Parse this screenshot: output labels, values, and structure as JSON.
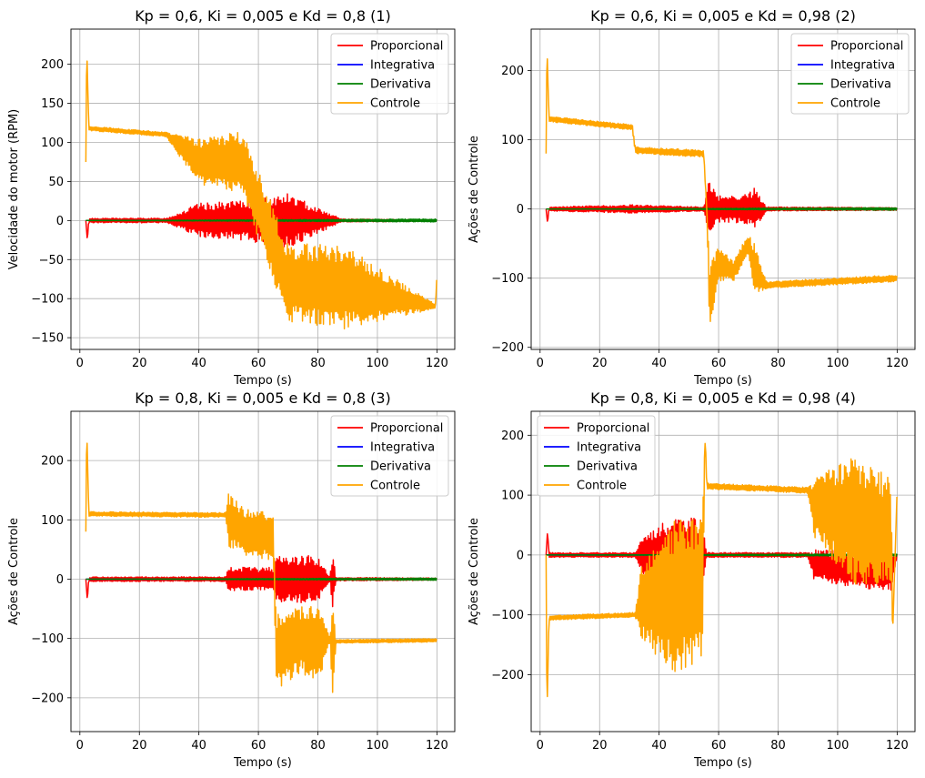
{
  "chart_data": [
    {
      "type": "line",
      "title": "Kp = 0,6, Ki = 0,005 e Kd = 0,8 (1)",
      "xlabel": "Tempo (s)",
      "ylabel": "Velocidade do motor (RPM)",
      "xlim": [
        -3,
        126
      ],
      "ylim": [
        -165,
        245
      ],
      "xticks": [
        "0",
        "20",
        "40",
        "60",
        "80",
        "100",
        "120"
      ],
      "yticks": [
        "−150",
        "−100",
        "−50",
        "0",
        "50",
        "100",
        "150",
        "200"
      ],
      "xtick_values": [
        0,
        20,
        40,
        60,
        80,
        100,
        120
      ],
      "ytick_values": [
        -150,
        -100,
        -50,
        0,
        50,
        100,
        150,
        200
      ],
      "grid": true,
      "legend": "top-right",
      "series": [
        {
          "name": "Proporcional",
          "color": "#ff0000",
          "x": [
            2,
            2.5,
            3,
            29,
            40,
            54.5,
            70,
            88,
            120
          ],
          "values": [
            0,
            -25,
            0,
            0,
            0,
            0,
            0,
            0,
            0
          ],
          "amplitude": [
            0,
            0,
            3,
            3,
            22,
            25,
            35,
            2,
            1
          ]
        },
        {
          "name": "Integrativa",
          "color": "#0000ff",
          "x": [
            2,
            120
          ],
          "values": [
            0,
            0
          ],
          "amplitude": [
            0,
            0
          ]
        },
        {
          "name": "Derivativa",
          "color": "#008000",
          "x": [
            2,
            120
          ],
          "values": [
            0,
            0
          ],
          "amplitude": [
            0,
            2
          ]
        },
        {
          "name": "Controle",
          "color": "#ffa500",
          "x": [
            2,
            2.3,
            3,
            29,
            40,
            54.5,
            70,
            88,
            119.5,
            120
          ],
          "values": [
            75,
            225,
            118,
            110,
            75,
            75,
            -80,
            -85,
            -110,
            -70
          ],
          "amplitude": [
            0,
            0,
            3,
            3,
            30,
            40,
            50,
            55,
            3,
            0
          ]
        }
      ]
    },
    {
      "type": "line",
      "title": "Kp = 0,6, Ki = 0,005 e Kd = 0,98 (2)",
      "xlabel": "Tempo (s)",
      "ylabel": "Ações de Controle",
      "xlim": [
        -3,
        126
      ],
      "ylim": [
        -203,
        260
      ],
      "xticks": [
        "0",
        "20",
        "40",
        "60",
        "80",
        "100",
        "120"
      ],
      "yticks": [
        "−200",
        "−100",
        "0",
        "100",
        "200"
      ],
      "xtick_values": [
        0,
        20,
        40,
        60,
        80,
        100,
        120
      ],
      "ytick_values": [
        -200,
        -100,
        0,
        100,
        200
      ],
      "grid": true,
      "legend": "top-right",
      "series": [
        {
          "name": "Proporcional",
          "color": "#ff0000",
          "x": [
            2,
            2.5,
            3,
            31,
            55,
            56.5,
            60,
            68,
            72,
            76,
            120
          ],
          "values": [
            0,
            -20,
            0,
            0,
            0,
            0,
            0,
            0,
            0,
            0,
            0
          ],
          "amplitude": [
            0,
            0,
            3,
            6,
            3,
            40,
            20,
            20,
            30,
            3,
            2
          ]
        },
        {
          "name": "Integrativa",
          "color": "#0000ff",
          "x": [
            2,
            120
          ],
          "values": [
            0,
            0
          ],
          "amplitude": [
            0,
            0
          ]
        },
        {
          "name": "Derivativa",
          "color": "#008000",
          "x": [
            2,
            120
          ],
          "values": [
            0,
            0
          ],
          "amplitude": [
            0,
            2
          ]
        },
        {
          "name": "Controle",
          "color": "#ffa500",
          "x": [
            2,
            2.3,
            3,
            31,
            32,
            55,
            56,
            57,
            60,
            65,
            70,
            72,
            76,
            120
          ],
          "values": [
            80,
            238,
            130,
            118,
            85,
            80,
            0,
            -130,
            -80,
            -90,
            -50,
            -90,
            -110,
            -100
          ],
          "amplitude": [
            0,
            0,
            4,
            4,
            5,
            5,
            0,
            50,
            25,
            15,
            15,
            40,
            5,
            5
          ]
        }
      ]
    },
    {
      "type": "line",
      "title": "Kp = 0,8, Ki = 0,005 e Kd = 0,8 (3)",
      "xlabel": "Tempo (s)",
      "ylabel": "Ações de Controle",
      "xlim": [
        -3,
        126
      ],
      "ylim": [
        -257,
        283
      ],
      "xticks": [
        "0",
        "20",
        "40",
        "60",
        "80",
        "100",
        "120"
      ],
      "yticks": [
        "−200",
        "−100",
        "0",
        "100",
        "200"
      ],
      "xtick_values": [
        0,
        20,
        40,
        60,
        80,
        100,
        120
      ],
      "ytick_values": [
        -200,
        -100,
        0,
        100,
        200
      ],
      "grid": true,
      "legend": "top-right",
      "series": [
        {
          "name": "Proporcional",
          "color": "#ff0000",
          "x": [
            2,
            2.5,
            3,
            49,
            50,
            65,
            66,
            80,
            84,
            85,
            86,
            120
          ],
          "values": [
            0,
            -35,
            0,
            0,
            0,
            0,
            0,
            0,
            0,
            0,
            0,
            0
          ],
          "amplitude": [
            0,
            0,
            4,
            4,
            20,
            20,
            40,
            40,
            3,
            50,
            3,
            2
          ]
        },
        {
          "name": "Integrativa",
          "color": "#0000ff",
          "x": [
            2,
            120
          ],
          "values": [
            0,
            0
          ],
          "amplitude": [
            0,
            0
          ]
        },
        {
          "name": "Derivativa",
          "color": "#008000",
          "x": [
            2,
            120
          ],
          "values": [
            0,
            0
          ],
          "amplitude": [
            0,
            2
          ]
        },
        {
          "name": "Controle",
          "color": "#ffa500",
          "x": [
            2,
            2.3,
            3,
            49,
            50,
            55,
            65,
            66,
            75,
            80,
            84,
            85,
            86,
            120
          ],
          "values": [
            80,
            258,
            110,
            108,
            100,
            80,
            70,
            -120,
            -100,
            -110,
            -100,
            -120,
            -105,
            -103
          ],
          "amplitude": [
            0,
            0,
            4,
            4,
            45,
            40,
            40,
            65,
            60,
            70,
            3,
            90,
            3,
            3
          ]
        }
      ]
    },
    {
      "type": "line",
      "title": "Kp = 0,8, Ki = 0,005 e Kd = 0,98 (4)",
      "xlabel": "Tempo (s)",
      "ylabel": "Ações de Controle",
      "xlim": [
        -3,
        126
      ],
      "ylim": [
        -295,
        240
      ],
      "xticks": [
        "0",
        "20",
        "40",
        "60",
        "80",
        "100",
        "120"
      ],
      "yticks": [
        "−200",
        "−100",
        "0",
        "100",
        "200"
      ],
      "xtick_values": [
        0,
        20,
        40,
        60,
        80,
        100,
        120
      ],
      "ytick_values": [
        -200,
        -100,
        0,
        100,
        200
      ],
      "grid": true,
      "legend": "top-left",
      "series": [
        {
          "name": "Proporcional",
          "color": "#ff0000",
          "x": [
            2,
            2.5,
            3,
            32,
            34,
            45,
            54.5,
            56,
            90,
            92,
            105,
            118,
            120
          ],
          "values": [
            0,
            40,
            0,
            0,
            0,
            0,
            0,
            0,
            0,
            -15,
            -25,
            -30,
            0
          ],
          "amplitude": [
            0,
            0,
            4,
            4,
            30,
            65,
            60,
            4,
            4,
            25,
            30,
            30,
            2
          ]
        },
        {
          "name": "Integrativa",
          "color": "#0000ff",
          "x": [
            2,
            120
          ],
          "values": [
            0,
            0
          ],
          "amplitude": [
            0,
            0
          ]
        },
        {
          "name": "Derivativa",
          "color": "#008000",
          "x": [
            2,
            120
          ],
          "values": [
            0,
            0
          ],
          "amplitude": [
            0,
            2
          ]
        },
        {
          "name": "Controle",
          "color": "#ffa500",
          "x": [
            2,
            2.3,
            3,
            32,
            34,
            45,
            54.5,
            55.5,
            56,
            90,
            92,
            105,
            118,
            118.5,
            120
          ],
          "values": [
            0,
            -270,
            -105,
            -100,
            -80,
            -70,
            -60,
            200,
            115,
            108,
            80,
            60,
            40,
            -130,
            110
          ],
          "amplitude": [
            0,
            0,
            4,
            4,
            60,
            130,
            120,
            0,
            5,
            5,
            50,
            110,
            90,
            0,
            0
          ]
        }
      ]
    }
  ]
}
